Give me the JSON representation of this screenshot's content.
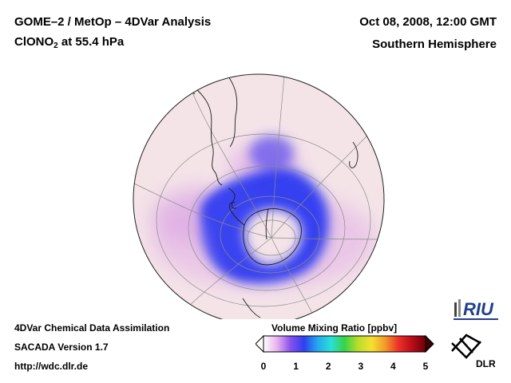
{
  "header": {
    "line1": "GOME–2 / MetOp – 4DVar Analysis",
    "species_prefix": "ClONO",
    "species_sub": "2",
    "species_suffix": " at 55.4 hPa",
    "datetime": "Oct 08, 2008, 12:00 GMT",
    "region": "Southern Hemisphere"
  },
  "footer": {
    "line1": "4DVar Chemical Data Assimilation",
    "line2": "SACADA Version 1.7",
    "line3": "http://wdc.dlr.de"
  },
  "colorbar": {
    "title": "Volume Mixing Ratio [ppbv]",
    "ticks": [
      "0",
      "1",
      "2",
      "3",
      "4",
      "5"
    ],
    "min": 0,
    "max": 5,
    "colors": [
      "#ffffff",
      "#e9b2ec",
      "#8850ee",
      "#2d40f0",
      "#24a8f0",
      "#29e0d8",
      "#38d248",
      "#b8de2a",
      "#f4e030",
      "#f49a28",
      "#ee3028",
      "#b80c18",
      "#6e0008"
    ]
  },
  "logos": {
    "riu": "RIU",
    "dlr": "DLR"
  },
  "map": {
    "projection": "orthographic, Southern Hemisphere",
    "background_color": "#f4e4e8"
  }
}
